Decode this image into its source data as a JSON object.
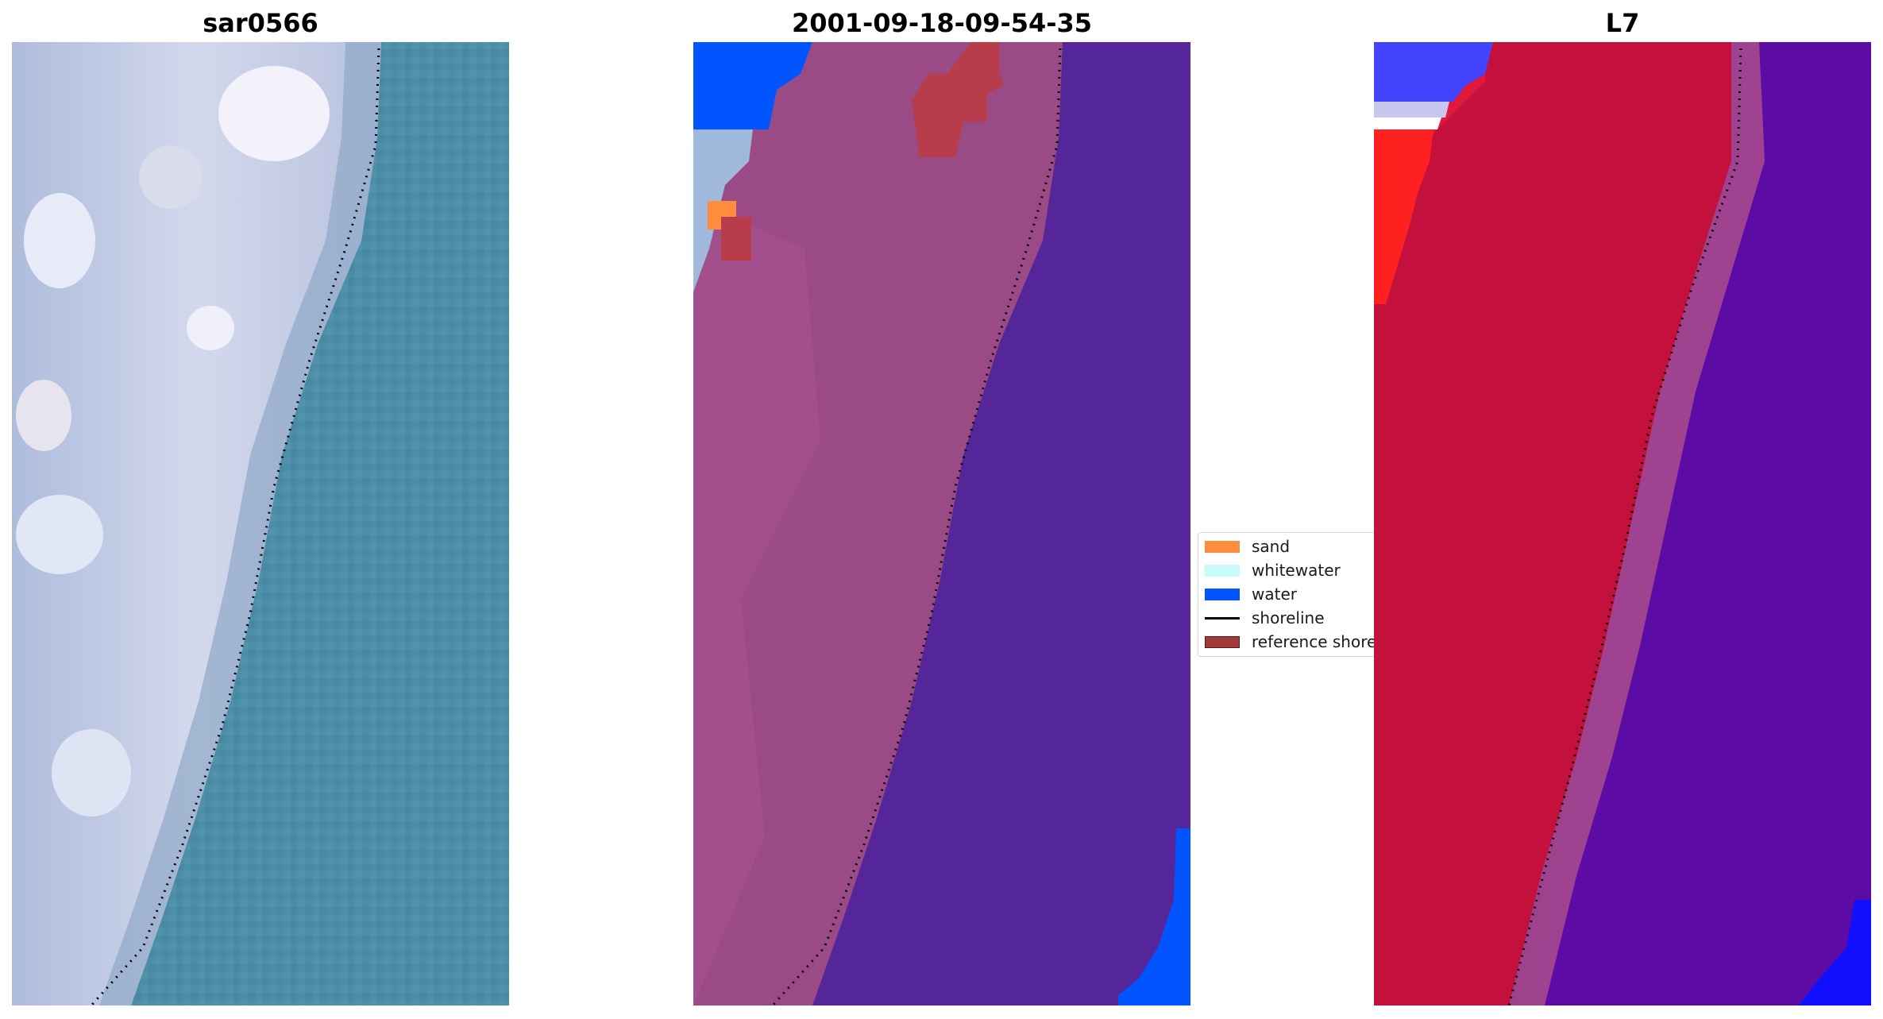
{
  "panels": [
    {
      "title": "sar0566",
      "image": "satellite-true-color"
    },
    {
      "title": "2001-09-18-09-54-35",
      "image": "classified-overlay"
    },
    {
      "title": "L7",
      "image": "index-map"
    }
  ],
  "legend": {
    "items": [
      {
        "label": "sand",
        "color": "#ff8c3a",
        "kind": "patch"
      },
      {
        "label": "whitewater",
        "color": "#c8fafa",
        "kind": "patch"
      },
      {
        "label": "water",
        "color": "#0055ff",
        "kind": "patch"
      },
      {
        "label": "shoreline",
        "color": "#000000",
        "kind": "line"
      },
      {
        "label": "reference shoreline buffer",
        "color": "#a33a3a",
        "kind": "patch"
      }
    ]
  },
  "colors": {
    "ocean_true_color": "#4a8ea6",
    "land_true_color": "#c7cfe6",
    "land_overlay": "#9a4a85",
    "sea_overlay": "#55259a",
    "land_index": "#c4103d",
    "sea_index": "#5a0aa0"
  }
}
